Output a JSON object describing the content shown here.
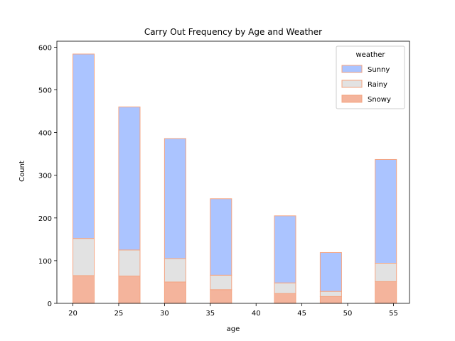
{
  "chart_data": {
    "type": "bar",
    "stacked": true,
    "title": "Carry Out Frequency by Age and Weather",
    "xlabel": "age",
    "ylabel": "Count",
    "xlim": [
      18.25,
      56.75
    ],
    "ylim": [
      0,
      614
    ],
    "xticks": [
      20,
      25,
      30,
      35,
      40,
      45,
      50,
      55
    ],
    "yticks": [
      0,
      100,
      200,
      300,
      400,
      500,
      600
    ],
    "bin_width": 2.33,
    "bins": [
      20,
      25,
      30,
      35,
      42,
      47,
      53
    ],
    "legend": {
      "title": "weather",
      "placement": "top-right"
    },
    "edge_color": "#f4a582",
    "series": [
      {
        "name": "Sunny",
        "color": "#abc4ff",
        "values": [
          432,
          335,
          281,
          179,
          157,
          91,
          243
        ]
      },
      {
        "name": "Rainy",
        "color": "#e2e2e2",
        "values": [
          87,
          61,
          55,
          34,
          25,
          12,
          43
        ]
      },
      {
        "name": "Snowy",
        "color": "#f4b49c",
        "values": [
          65,
          64,
          50,
          32,
          23,
          16,
          51
        ]
      }
    ],
    "totals": [
      584,
      460,
      386,
      245,
      205,
      119,
      337
    ]
  }
}
